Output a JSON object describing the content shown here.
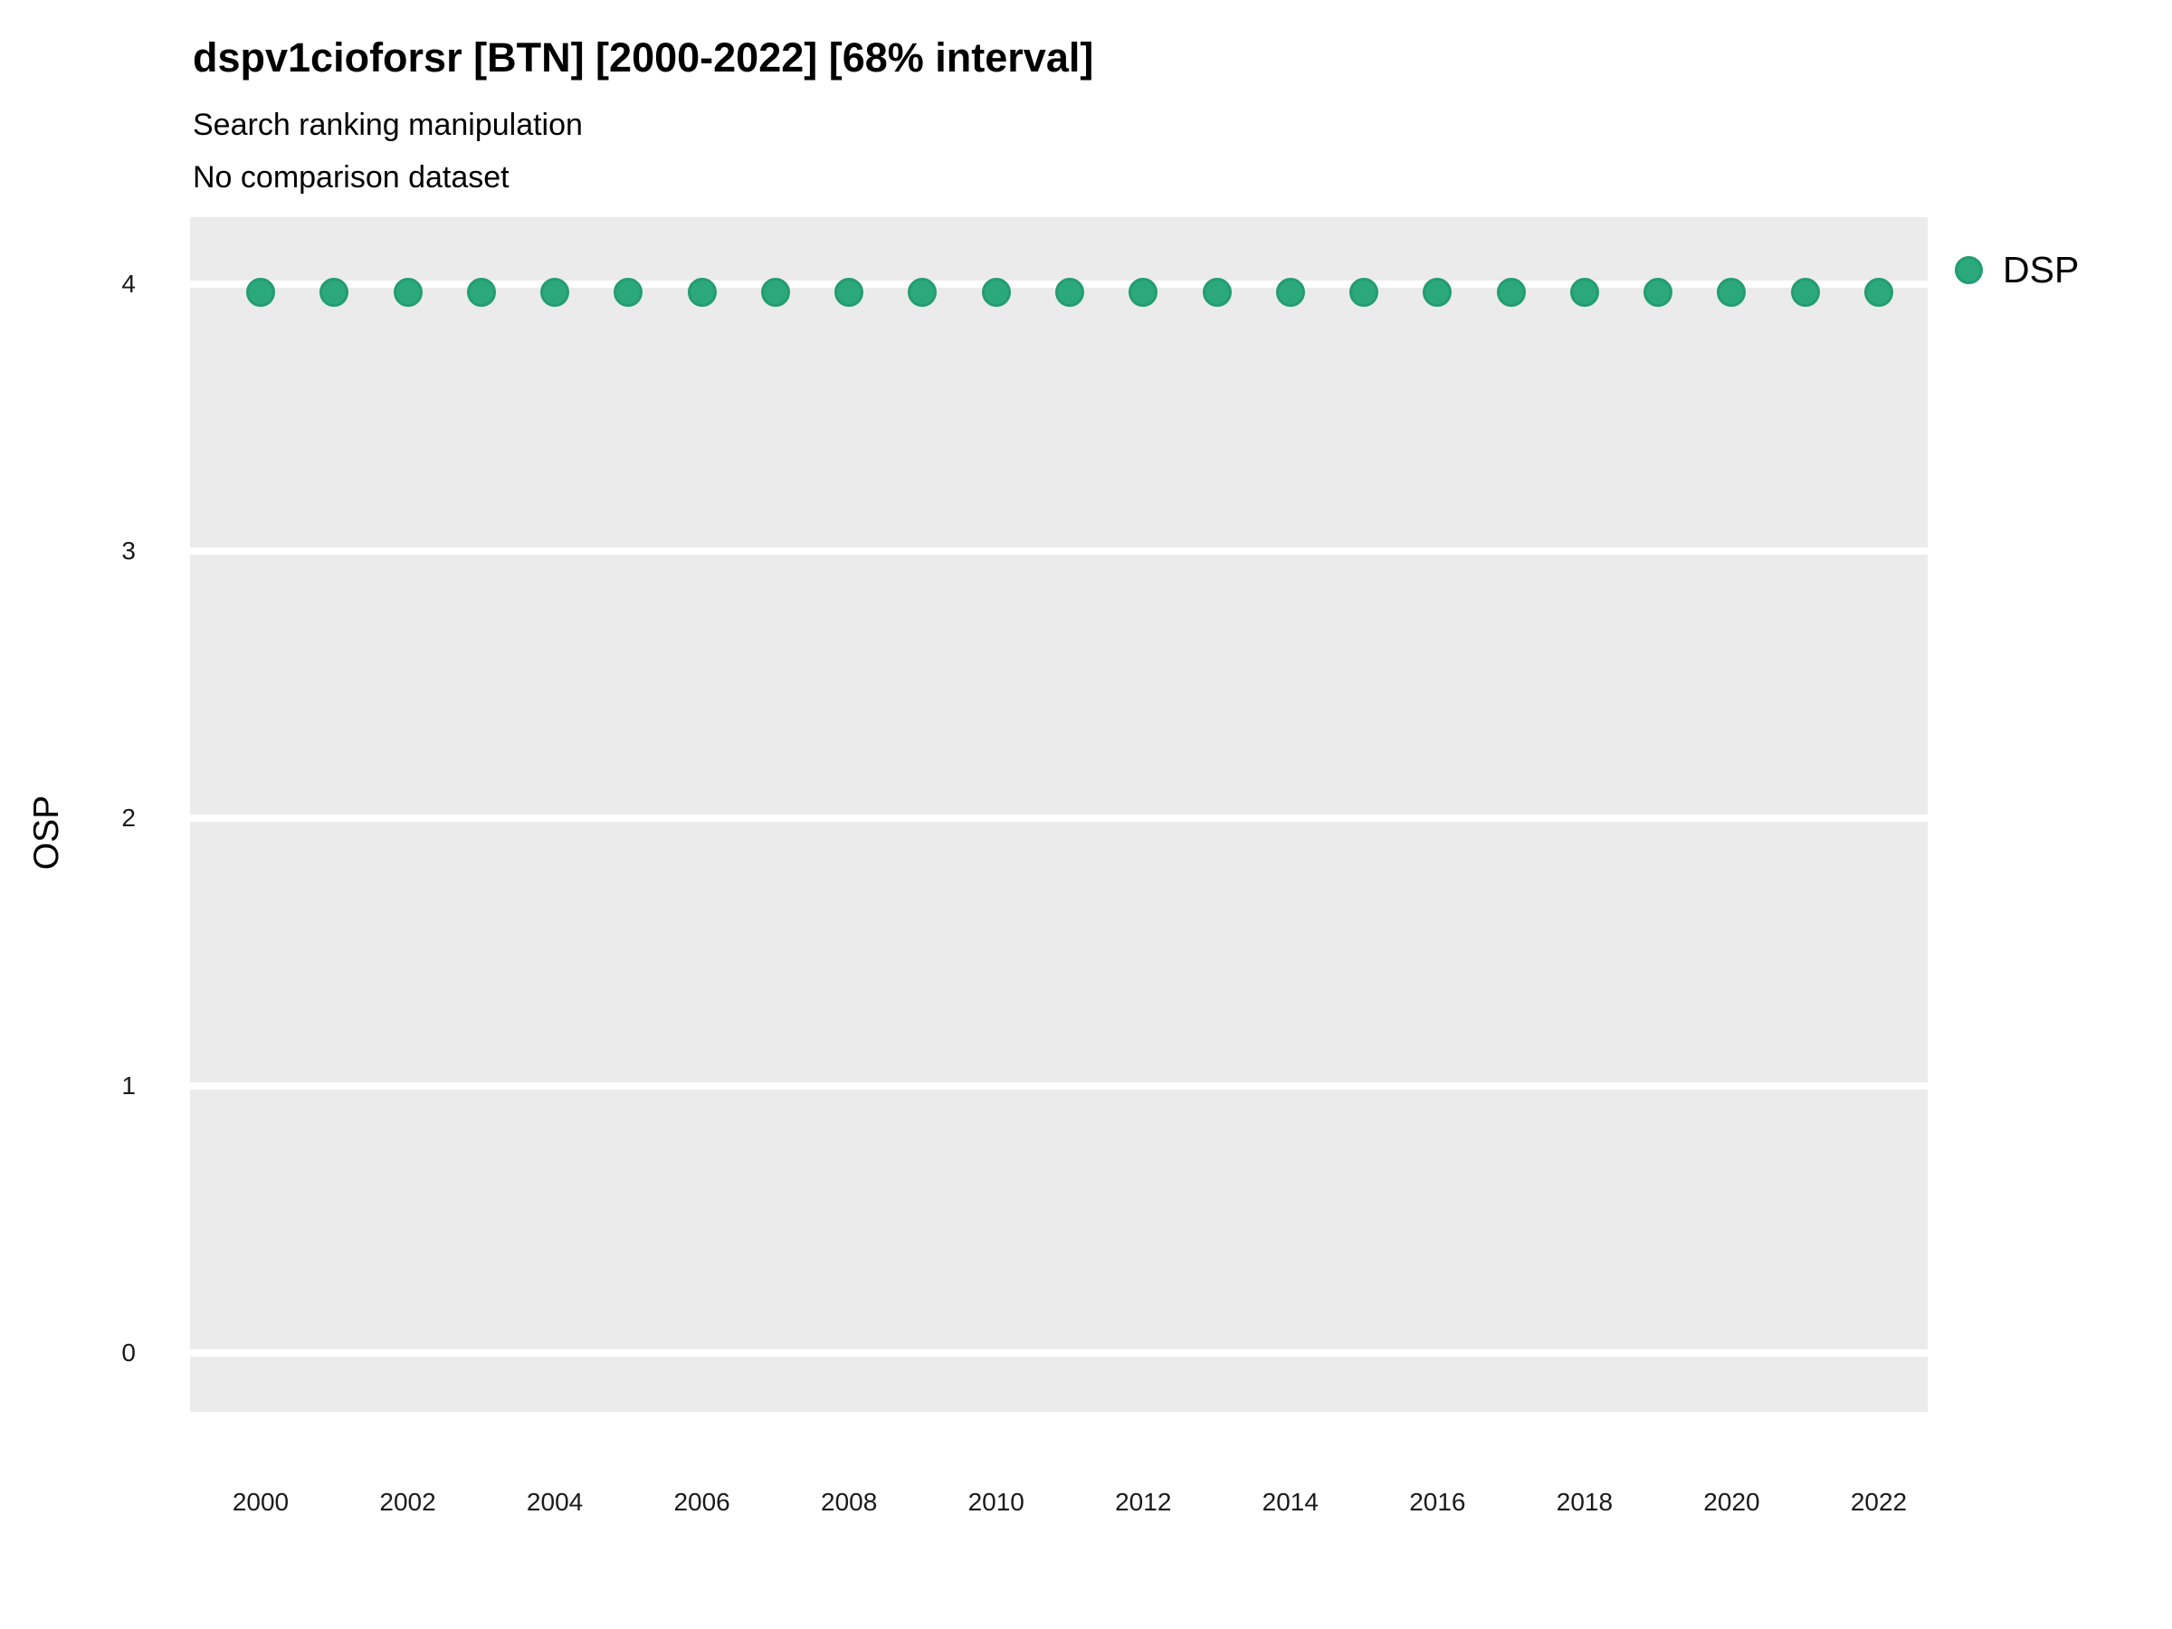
{
  "figure": {
    "title": "dspv1cioforsr [BTN] [2000-2022] [68% interval]",
    "subtitle": "Search ranking manipulation",
    "note": "No comparison dataset"
  },
  "legend": {
    "position": "right",
    "items": [
      {
        "label": "DSP",
        "color": "#2BA97C"
      }
    ]
  },
  "chart_data": {
    "type": "scatter",
    "title": "dspv1cioforsr [BTN] [2000-2022] [68% interval]",
    "subtitle": "Search ranking manipulation",
    "annotation": "No comparison dataset",
    "xlabel": "",
    "ylabel": "OSP",
    "x": [
      2000,
      2001,
      2002,
      2003,
      2004,
      2005,
      2006,
      2007,
      2008,
      2009,
      2010,
      2011,
      2012,
      2013,
      2014,
      2015,
      2016,
      2017,
      2018,
      2019,
      2020,
      2021,
      2022
    ],
    "series": [
      {
        "name": "DSP",
        "color": "#2BA97C",
        "values": [
          3.97,
          3.97,
          3.97,
          3.97,
          3.97,
          3.97,
          3.97,
          3.97,
          3.97,
          3.97,
          3.97,
          3.97,
          3.97,
          3.97,
          3.97,
          3.97,
          3.97,
          3.97,
          3.97,
          3.97,
          3.97,
          3.97,
          3.97
        ]
      }
    ],
    "xticks": [
      2000,
      2002,
      2004,
      2006,
      2008,
      2010,
      2012,
      2014,
      2016,
      2018,
      2020,
      2022
    ],
    "yticks": [
      0,
      1,
      2,
      3,
      4
    ],
    "ylim": [
      -0.22,
      4.25
    ],
    "grid": "horizontal-major-only",
    "panel_bg": "#EBEBEB",
    "gridline_color": "#FFFFFF",
    "legend_position": "right"
  }
}
